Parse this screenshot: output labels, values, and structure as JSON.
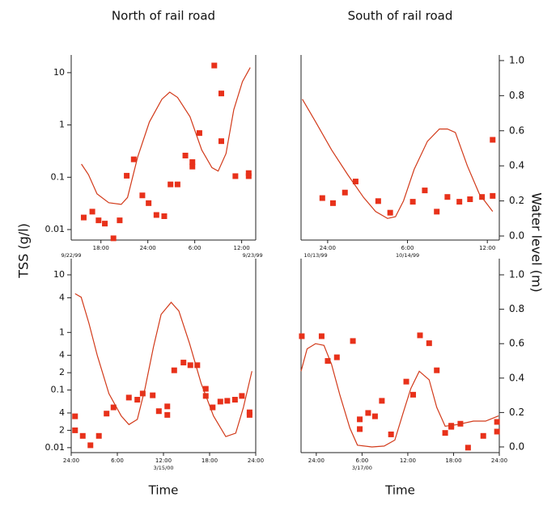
{
  "axis_labels": {
    "y": "TSS (g/l)",
    "y2": "Water level (m)"
  },
  "chart_data": [
    {
      "type": "combo",
      "title": "North of rail road",
      "ylog": true,
      "xlim": [
        14.2,
        37.8
      ],
      "ylim": [
        0.0063,
        21.8
      ],
      "y2lim": [
        -0.023,
        1.032
      ],
      "xticks": [
        {
          "value": 18,
          "label": "18:00"
        },
        {
          "value": 24,
          "label": "24:00"
        },
        {
          "value": 30,
          "label": "6:00"
        },
        {
          "value": 36,
          "label": "12:00"
        }
      ],
      "dates": [
        {
          "value": 14.2,
          "label": "9/22/99"
        },
        {
          "value": 37.4,
          "label": "9/23/99"
        }
      ],
      "yticks": [
        10,
        1,
        0.1,
        0.01
      ],
      "series": [
        {
          "type": "scatter",
          "color": "#e8311a",
          "x": [
            15.8,
            16.9,
            17.7,
            18.5,
            19.6,
            20.4,
            21.3,
            22.2,
            23.3,
            24.1,
            25.1,
            26.1,
            26.9,
            27.8,
            28.8,
            29.7,
            29.7,
            30.6,
            32.5,
            33.4,
            33.4,
            35.2,
            36.9,
            36.9
          ],
          "values": [
            0.017,
            0.022,
            0.015,
            0.013,
            0.0068,
            0.015,
            0.107,
            0.22,
            0.045,
            0.032,
            0.019,
            0.018,
            0.073,
            0.073,
            0.26,
            0.195,
            0.16,
            0.7,
            13.7,
            4.0,
            0.49,
            0.105,
            0.12,
            0.105
          ]
        },
        {
          "type": "line",
          "axis": "y2",
          "color": "#d23a1a",
          "x": [
            15.5,
            16.4,
            17.5,
            19.0,
            20.6,
            21.4,
            22.7,
            24.2,
            25.8,
            26.8,
            27.8,
            29.4,
            30.9,
            32.2,
            33.0,
            34.0,
            35.0,
            36.1,
            37.1
          ],
          "values": [
            0.41,
            0.35,
            0.24,
            0.19,
            0.18,
            0.22,
            0.45,
            0.65,
            0.78,
            0.82,
            0.79,
            0.68,
            0.49,
            0.39,
            0.37,
            0.47,
            0.72,
            0.88,
            0.96
          ]
        }
      ]
    },
    {
      "type": "combo",
      "title": "South of rail road",
      "ylog": true,
      "xlim": [
        22,
        36.9
      ],
      "ylim": [
        0.0063,
        21.8
      ],
      "y2lim": [
        -0.023,
        1.032
      ],
      "xticks": [
        {
          "value": 24,
          "label": "24:00"
        },
        {
          "value": 30,
          "label": "6:00"
        },
        {
          "value": 36,
          "label": "12:00"
        }
      ],
      "dates": [
        {
          "value": 23.1,
          "label": "10/13/99"
        },
        {
          "value": 30,
          "label": "10/14/99"
        }
      ],
      "y2ticks": [
        {
          "value": 0,
          "label": "0.0"
        },
        0.2,
        0.4,
        0.6,
        0.8,
        {
          "value": 1,
          "label": "1.0"
        }
      ],
      "series": [
        {
          "type": "scatter",
          "color": "#e8311a",
          "x": [
            23.6,
            24.4,
            25.3,
            26.1,
            27.8,
            28.7,
            30.4,
            31.3,
            32.2,
            33.0,
            33.9,
            34.7,
            35.6,
            36.4,
            36.4
          ],
          "values": [
            0.04,
            0.032,
            0.051,
            0.083,
            0.035,
            0.021,
            0.034,
            0.056,
            0.022,
            0.042,
            0.034,
            0.038,
            0.042,
            0.52,
            0.044
          ]
        },
        {
          "type": "line",
          "axis": "y2",
          "color": "#d23a1a",
          "x": [
            22.1,
            23.1,
            24.3,
            25.5,
            26.7,
            27.6,
            28.5,
            29.1,
            29.7,
            30.5,
            31.5,
            32.4,
            33.0,
            33.6,
            34.5,
            35.4,
            36.4
          ],
          "values": [
            0.78,
            0.65,
            0.49,
            0.35,
            0.22,
            0.14,
            0.1,
            0.11,
            0.2,
            0.38,
            0.54,
            0.61,
            0.61,
            0.59,
            0.4,
            0.24,
            0.14
          ]
        }
      ]
    },
    {
      "type": "combo",
      "ylog": true,
      "xlabel": "Time",
      "xlim": [
        0,
        24
      ],
      "ylim": [
        0.0082,
        19.1
      ],
      "y2lim": [
        -0.033,
        1.094
      ],
      "xticks": [
        {
          "value": 0,
          "label": "24:00"
        },
        {
          "value": 6,
          "label": "6:00"
        },
        {
          "value": 12,
          "label": "12:00"
        },
        {
          "value": 18,
          "label": "18:00"
        },
        {
          "value": 24,
          "label": "24:00"
        }
      ],
      "dates": [
        {
          "value": 12,
          "label": "3/15/00"
        }
      ],
      "yticks": [
        10,
        4,
        1,
        {
          "value": 0.4,
          "label": "4"
        },
        {
          "value": 0.2,
          "label": "2"
        },
        0.1,
        {
          "value": 0.04,
          "label": "4"
        },
        {
          "value": 0.02,
          "label": "2"
        },
        0.01
      ],
      "series": [
        {
          "type": "scatter",
          "color": "#e8311a",
          "x": [
            0.5,
            0.5,
            1.5,
            2.5,
            3.6,
            4.6,
            5.5,
            7.5,
            8.6,
            9.3,
            10.6,
            11.4,
            12.5,
            12.5,
            13.4,
            14.6,
            15.5,
            16.4,
            17.5,
            17.5,
            18.4,
            19.4,
            20.3,
            21.3,
            22.2,
            23.2,
            23.2
          ],
          "values": [
            0.035,
            0.02,
            0.016,
            0.011,
            0.016,
            0.039,
            0.05,
            0.074,
            0.068,
            0.087,
            0.081,
            0.043,
            0.052,
            0.037,
            0.22,
            0.3,
            0.27,
            0.27,
            0.105,
            0.079,
            0.05,
            0.063,
            0.065,
            0.068,
            0.079,
            0.041,
            0.037
          ]
        },
        {
          "type": "line",
          "axis": "y2",
          "color": "#d23a1a",
          "x": [
            0.5,
            1.3,
            2.3,
            3.4,
            4.9,
            6.5,
            7.5,
            8.6,
            9.6,
            10.7,
            11.7,
            13.0,
            14.0,
            15.4,
            16.9,
            18.5,
            20.1,
            21.4,
            22.4,
            23.5
          ],
          "values": [
            0.89,
            0.87,
            0.72,
            0.53,
            0.31,
            0.18,
            0.13,
            0.16,
            0.34,
            0.58,
            0.77,
            0.84,
            0.79,
            0.6,
            0.37,
            0.18,
            0.06,
            0.08,
            0.23,
            0.44
          ]
        }
      ]
    },
    {
      "type": "combo",
      "ylog": true,
      "xlabel": "Time",
      "xlim": [
        -2,
        24
      ],
      "ylim": [
        0.0082,
        19.1
      ],
      "y2lim": [
        -0.033,
        1.094
      ],
      "xticks": [
        {
          "value": 0,
          "label": "24:00"
        },
        {
          "value": 6,
          "label": "6:00"
        },
        {
          "value": 12,
          "label": "12:00"
        },
        {
          "value": 18,
          "label": "18:00"
        },
        {
          "value": 24,
          "label": "24:00"
        }
      ],
      "dates": [
        {
          "value": 6,
          "label": "3/17/00"
        }
      ],
      "y2ticks": [
        {
          "value": 0,
          "label": "0.0"
        },
        0.2,
        0.4,
        0.6,
        0.8,
        {
          "value": 1,
          "label": "1.0"
        }
      ],
      "series": [
        {
          "type": "scatter",
          "color": "#e8311a",
          "x": [
            -1.9,
            0.7,
            1.5,
            2.7,
            4.8,
            5.7,
            5.7,
            6.8,
            7.7,
            8.6,
            9.8,
            11.8,
            12.7,
            13.6,
            14.8,
            15.8,
            16.9,
            17.7,
            17.7,
            18.9,
            19.9,
            21.9,
            23.7,
            23.7
          ],
          "values": [
            0.86,
            0.86,
            0.32,
            0.37,
            0.71,
            0.031,
            0.021,
            0.04,
            0.035,
            0.065,
            0.017,
            0.14,
            0.083,
            0.89,
            0.65,
            0.22,
            0.018,
            0.024,
            0.023,
            0.026,
            0.01,
            0.016,
            0.028,
            0.019
          ]
        },
        {
          "type": "line",
          "axis": "y2",
          "color": "#d23a1a",
          "x": [
            -2,
            -1.2,
            -0.1,
            1.0,
            2.0,
            3.1,
            4.4,
            5.4,
            7.3,
            8.9,
            10.3,
            11.4,
            12.4,
            13.5,
            14.8,
            15.8,
            16.9,
            18.5,
            20.6,
            22.2,
            23.9
          ],
          "values": [
            0.44,
            0.57,
            0.6,
            0.59,
            0.48,
            0.3,
            0.11,
            0.01,
            0,
            0.005,
            0.04,
            0.2,
            0.34,
            0.44,
            0.39,
            0.23,
            0.12,
            0.13,
            0.15,
            0.15,
            0.18
          ]
        }
      ]
    }
  ]
}
